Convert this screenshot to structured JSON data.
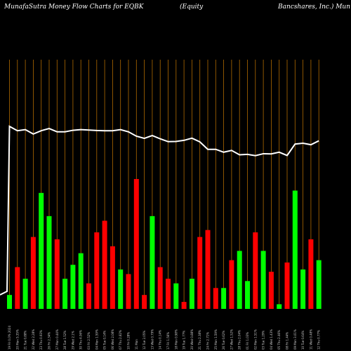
{
  "chart_data": {
    "type": "bar",
    "title_parts": [
      "MunafaSutra  Money Flow  Charts for EQBK",
      "(Equity",
      "Bancshares,  Inc.) Mun"
    ],
    "colors": {
      "up": "#00ff00",
      "down": "#ff0000",
      "grid": "#b06a00",
      "line": "#ffffff",
      "background": "#000000"
    },
    "x_labels": [
      "19 Fri 0.0% 2024",
      "20 Mon 5.35%",
      "21 Tue 0.88%",
      "22 Wed 2.28%",
      "23 Thu 0.93%",
      "26 Fri 2.34%",
      "27 Mon 0.44%",
      "28 Tue 1.52%",
      "29 Wed 2.1%",
      "30 Thu 4.06%",
      "03 Fri 2.52%",
      "04 Mon 1.59%",
      "05 Tue 0.14%",
      "06 Wed 2.08%",
      "07 Thu 2.82%",
      "10 Fri 0.28%",
      "11 Mon",
      "12 Tue 2.05%",
      "13 Wed 0.79%",
      "14 Thu 0.14%",
      "17 Fri 1.56%",
      "18 Mon 0.98%",
      "19 Tue 1.77%",
      "20 Wed 0.88%",
      "21 Thu 2.38%",
      "24 Fri 2.71%",
      "25 Mon 1.59%",
      "26 Tue 0.62%",
      "27 Wed 1.52%",
      "28 Thu 2.04%",
      "01 Fri 1.03%",
      "02 Mon 1.51%",
      "03 Tue 1.29%",
      "04 Wed 1.43%",
      "05 Thu 2.46%",
      "08 Fri 1.44%",
      "09 Mon 3.01%",
      "10 Tue 0.64%",
      "11 Wed 0.48%",
      "12 Thu 0.77%"
    ],
    "bar_values": [
      6,
      18,
      13,
      31,
      50,
      40,
      30,
      13,
      19,
      24,
      11,
      33,
      38,
      27,
      17,
      15,
      56,
      6,
      40,
      18,
      13,
      11,
      3,
      13,
      31,
      34,
      9,
      9,
      21,
      25,
      12,
      33,
      25,
      16,
      2,
      20,
      51,
      17,
      30,
      21
    ],
    "bar_colors": [
      "up",
      "down",
      "up",
      "down",
      "up",
      "up",
      "down",
      "up",
      "up",
      "up",
      "down",
      "down",
      "down",
      "down",
      "up",
      "down",
      "down",
      "down",
      "up",
      "down",
      "down",
      "up",
      "down",
      "up",
      "down",
      "down",
      "down",
      "up",
      "down",
      "up",
      "up",
      "down",
      "up",
      "down",
      "up",
      "down",
      "up",
      "up",
      "down",
      "up"
    ],
    "line_values": [
      62,
      60,
      60.5,
      58.5,
      60,
      61,
      59.5,
      59.5,
      60.2,
      60.5,
      60.3,
      60.1,
      60,
      60,
      60.5,
      59.5,
      57.5,
      56.5,
      57.8,
      56.3,
      55,
      55.1,
      55.6,
      56.6,
      54.9,
      51.5,
      51.5,
      50.2,
      51,
      49,
      49.2,
      48.6,
      49.5,
      49.4,
      50.2,
      48.7,
      53.9,
      54.3,
      53.6,
      55.4
    ],
    "line_start": 9,
    "y_max_bars": 56,
    "y_range_line": [
      45,
      70
    ]
  }
}
